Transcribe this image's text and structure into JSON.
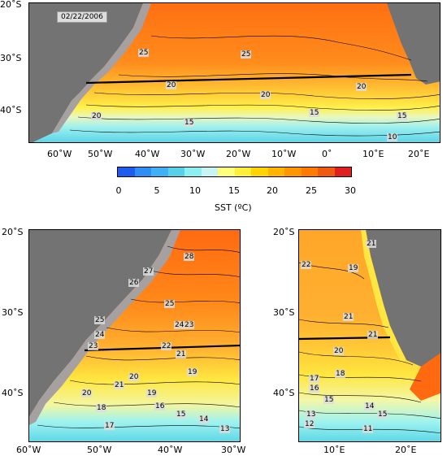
{
  "date_label": "02/22/2006",
  "colorbar": {
    "title": "SST (ºC)",
    "ticks": [
      "0",
      "5",
      "10",
      "15",
      "20",
      "25",
      "30"
    ],
    "colors": [
      "#1e5cf0",
      "#2f8ef5",
      "#4cc8f5",
      "#8cf0f0",
      "#d8f7ee",
      "#ffff7a",
      "#ffef3a",
      "#ffd400",
      "#ffb400",
      "#ff9600",
      "#ff7a00",
      "#f05a10",
      "#e02020"
    ]
  },
  "top_map": {
    "lat_labels": [
      "20˚S",
      "30˚S",
      "40˚S"
    ],
    "lon_labels": [
      "60˚W",
      "50˚W",
      "40˚W",
      "30˚W",
      "20˚W",
      "10˚W",
      "0˚",
      "10˚E",
      "20˚E"
    ],
    "contour_labels": [
      "25",
      "25",
      "20",
      "20",
      "20",
      "15",
      "15",
      "15",
      "20",
      "10"
    ]
  },
  "bottom_left_map": {
    "lat_labels": [
      "20˚S",
      "30˚S",
      "40˚S"
    ],
    "lon_labels": [
      "60˚W",
      "50˚W",
      "40˚W",
      "30˚W"
    ],
    "contour_labels": [
      "28",
      "27",
      "26",
      "25",
      "25",
      "24",
      "24",
      "23",
      "23",
      "22",
      "21",
      "21",
      "20",
      "20",
      "19",
      "19",
      "18",
      "17",
      "16",
      "15",
      "14",
      "13"
    ]
  },
  "bottom_right_map": {
    "lat_labels": [
      "20˚S",
      "30˚S",
      "40˚S"
    ],
    "lon_labels": [
      "10˚E",
      "20˚E"
    ],
    "contour_labels": [
      "21",
      "22",
      "19",
      "21",
      "21",
      "20",
      "18",
      "17",
      "16",
      "15",
      "14",
      "13",
      "12",
      "11",
      "15"
    ]
  },
  "colors": {
    "land": "#737373",
    "shelf": "#a7a0a0",
    "warm": "#ff8a1a",
    "hot": "#ff6a10",
    "mid": "#ffb030",
    "yellow": "#ffe640",
    "cold": "#5ad6e6",
    "cyan": "#9ff3f0"
  }
}
